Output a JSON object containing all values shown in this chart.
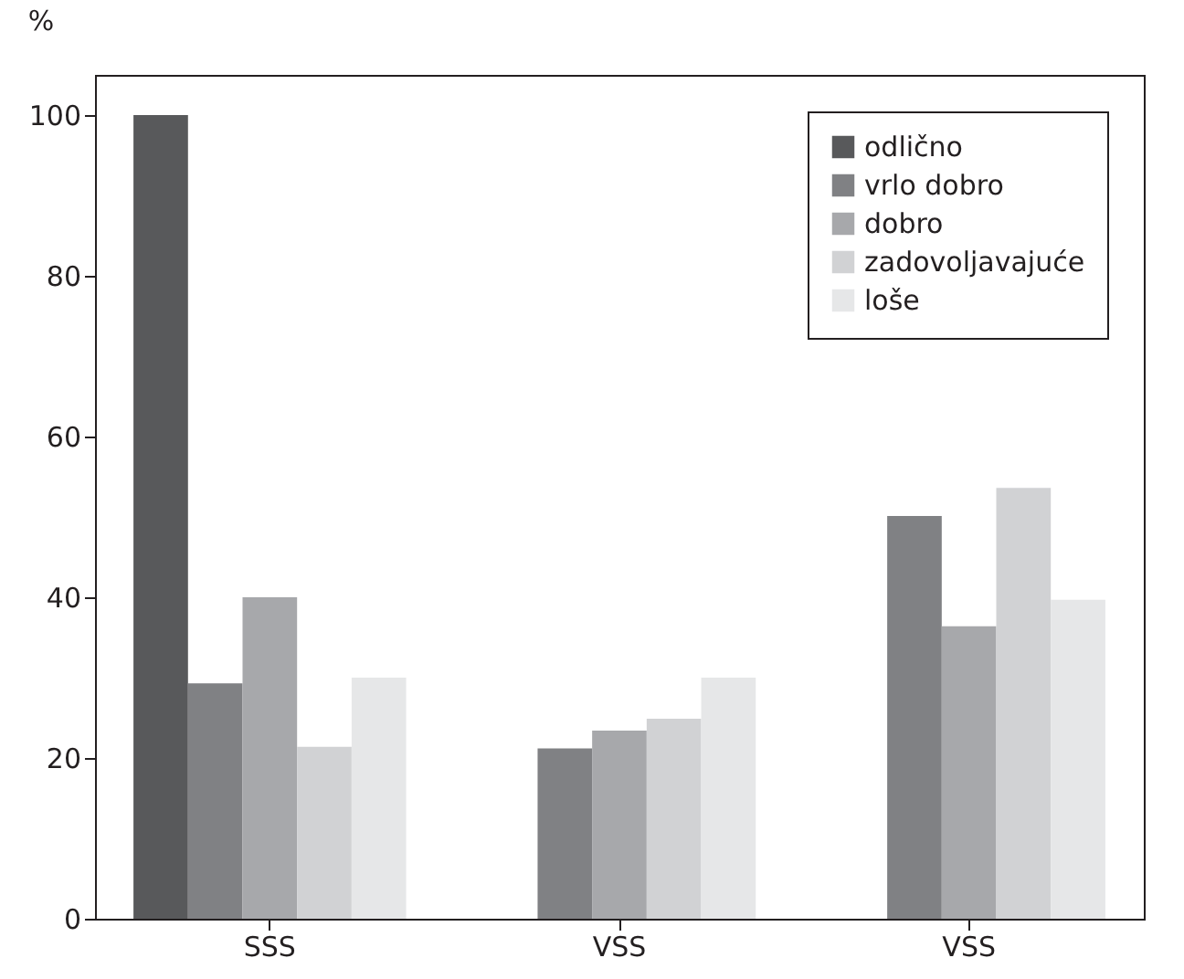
{
  "chart_data": {
    "type": "bar",
    "ylabel": "%",
    "categories": [
      "SSS",
      "VSS",
      "VSS"
    ],
    "series": [
      {
        "name": "odlično",
        "color": "#58595b",
        "values": [
          100,
          null,
          null
        ]
      },
      {
        "name": "vrlo dobro",
        "color": "#808184",
        "values": [
          29.3,
          21.2,
          50.1
        ]
      },
      {
        "name": "dobro",
        "color": "#a7a8ab",
        "values": [
          40,
          23.4,
          36.4
        ]
      },
      {
        "name": "zadovoljavajuće",
        "color": "#d1d2d4",
        "values": [
          21.4,
          24.9,
          53.6
        ]
      },
      {
        "name": "loše",
        "color": "#e6e7e8",
        "values": [
          30,
          30,
          39.7
        ]
      }
    ],
    "ylim": [
      0,
      105
    ],
    "yticks": [
      0,
      20,
      40,
      60,
      80,
      100
    ],
    "legend": "top right",
    "grid": false
  }
}
